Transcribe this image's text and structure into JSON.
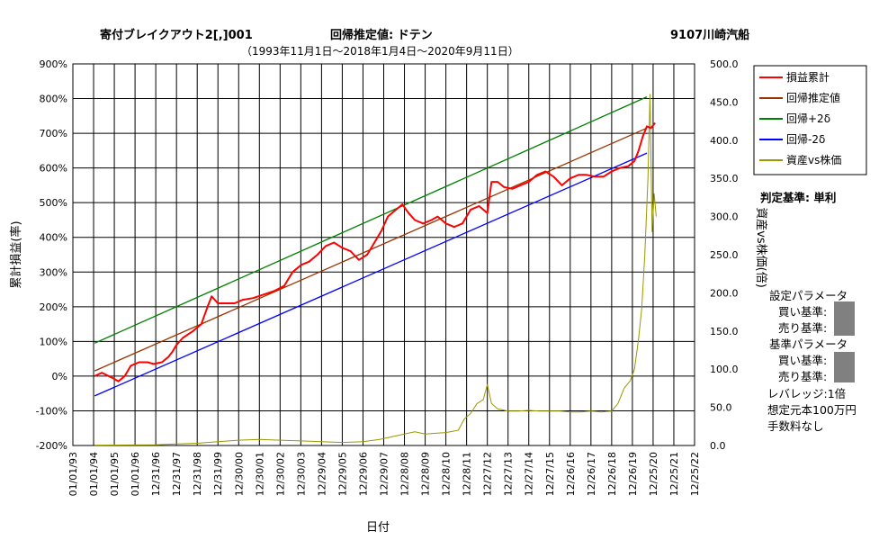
{
  "header": {
    "left_title": "寄付ブレイクアウト2[,]001",
    "center_title": "回帰推定値: ドテン",
    "right_title": "9107川崎汽船",
    "subtitle": "（1993年11月1日～2018年1月4日～2020年9月11日）"
  },
  "side_panel": {
    "judgement": "判定基準: 単利",
    "setting_params": "設定パラメータ",
    "setting_buy": "買い基準:",
    "setting_sell": "売り基準:",
    "base_params": "基準パラメータ",
    "base_buy": "買い基準:",
    "base_sell": "売り基準:",
    "leverage": "レバレッジ:1倍",
    "capital": "想定元本100万円",
    "fee": "手数料なし"
  },
  "colors": {
    "cum": "#ff0000",
    "reg": "#993300",
    "plus2": "#008000",
    "minus2": "#0000ff",
    "asset": "#999900"
  },
  "chart_data": {
    "type": "line",
    "xlabel": "日付",
    "ylabel_left": "累計損益(率)",
    "ylabel_right": "資産vs株価(倍)",
    "left_axis": {
      "min": -200,
      "max": 900,
      "step": 100,
      "unit": "%"
    },
    "right_axis": {
      "min": 0,
      "max": 500,
      "step": 50
    },
    "x_tick_labels": [
      "01/01/93",
      "01/01/94",
      "01/01/95",
      "01/01/96",
      "12/31/96",
      "12/31/97",
      "12/31/98",
      "12/31/99",
      "12/30/00",
      "12/30/01",
      "12/30/02",
      "12/30/03",
      "12/29/04",
      "12/29/05",
      "12/29/06",
      "12/29/07",
      "12/28/08",
      "12/28/09",
      "12/28/10",
      "12/28/11",
      "12/27/12",
      "12/27/13",
      "12/27/14",
      "12/27/15",
      "12/26/16",
      "12/26/17",
      "12/26/18",
      "12/26/19",
      "12/25/20",
      "12/25/21",
      "12/25/22"
    ],
    "grid": true,
    "legend_position": "right",
    "series": [
      {
        "name": "損益累計",
        "axis": "left",
        "color": "#ff0000",
        "points": [
          [
            1.05,
            0
          ],
          [
            1.4,
            10
          ],
          [
            1.9,
            -5
          ],
          [
            2.2,
            -15
          ],
          [
            2.5,
            0
          ],
          [
            2.8,
            30
          ],
          [
            3.2,
            40
          ],
          [
            3.6,
            40
          ],
          [
            3.9,
            35
          ],
          [
            4.3,
            40
          ],
          [
            4.6,
            55
          ],
          [
            4.8,
            70
          ],
          [
            5.0,
            90
          ],
          [
            5.3,
            110
          ],
          [
            5.8,
            130
          ],
          [
            6.2,
            150
          ],
          [
            6.5,
            200
          ],
          [
            6.7,
            230
          ],
          [
            7.0,
            210
          ],
          [
            7.4,
            210
          ],
          [
            7.8,
            210
          ],
          [
            8.2,
            220
          ],
          [
            8.7,
            225
          ],
          [
            9.2,
            235
          ],
          [
            9.7,
            245
          ],
          [
            10.2,
            260
          ],
          [
            10.6,
            300
          ],
          [
            11.0,
            320
          ],
          [
            11.4,
            330
          ],
          [
            11.8,
            350
          ],
          [
            12.2,
            375
          ],
          [
            12.6,
            385
          ],
          [
            13.0,
            370
          ],
          [
            13.4,
            360
          ],
          [
            13.8,
            335
          ],
          [
            14.2,
            350
          ],
          [
            14.6,
            390
          ],
          [
            14.9,
            420
          ],
          [
            15.2,
            460
          ],
          [
            15.6,
            480
          ],
          [
            15.9,
            495
          ],
          [
            16.2,
            470
          ],
          [
            16.5,
            450
          ],
          [
            16.9,
            440
          ],
          [
            17.3,
            450
          ],
          [
            17.6,
            460
          ],
          [
            18.0,
            440
          ],
          [
            18.4,
            430
          ],
          [
            18.8,
            440
          ],
          [
            19.2,
            480
          ],
          [
            19.6,
            490
          ],
          [
            20.0,
            470
          ],
          [
            20.2,
            560
          ],
          [
            20.5,
            560
          ],
          [
            20.8,
            545
          ],
          [
            21.2,
            540
          ],
          [
            21.6,
            550
          ],
          [
            22.0,
            560
          ],
          [
            22.4,
            580
          ],
          [
            22.8,
            590
          ],
          [
            23.2,
            575
          ],
          [
            23.6,
            550
          ],
          [
            24.0,
            570
          ],
          [
            24.4,
            580
          ],
          [
            24.8,
            580
          ],
          [
            25.2,
            575
          ],
          [
            25.6,
            575
          ],
          [
            26.0,
            590
          ],
          [
            26.4,
            600
          ],
          [
            26.8,
            605
          ],
          [
            27.1,
            620
          ],
          [
            27.3,
            650
          ],
          [
            27.5,
            690
          ],
          [
            27.7,
            720
          ],
          [
            27.9,
            715
          ],
          [
            28.1,
            730
          ]
        ]
      },
      {
        "name": "回帰推定値",
        "axis": "left",
        "color": "#993300",
        "points": [
          [
            1.05,
            15
          ],
          [
            27.7,
            715
          ]
        ]
      },
      {
        "name": "回帰+2δ",
        "axis": "left",
        "color": "#008000",
        "points": [
          [
            1.05,
            95
          ],
          [
            27.7,
            805
          ]
        ]
      },
      {
        "name": "回帰-2δ",
        "axis": "left",
        "color": "#0000ff",
        "points": [
          [
            1.05,
            -57
          ],
          [
            27.7,
            643
          ]
        ]
      },
      {
        "name": "資産vs株価",
        "axis": "right",
        "color": "#999900",
        "points": [
          [
            1.05,
            0.5
          ],
          [
            4.0,
            1
          ],
          [
            5.0,
            2
          ],
          [
            6.0,
            3
          ],
          [
            7.0,
            5
          ],
          [
            8.0,
            7
          ],
          [
            9.0,
            8
          ],
          [
            10.0,
            7
          ],
          [
            11.0,
            6
          ],
          [
            12.0,
            5
          ],
          [
            13.0,
            4
          ],
          [
            14.0,
            5
          ],
          [
            14.8,
            8
          ],
          [
            15.5,
            12
          ],
          [
            16.0,
            15
          ],
          [
            16.5,
            18
          ],
          [
            17.0,
            15
          ],
          [
            17.5,
            16
          ],
          [
            18.0,
            17
          ],
          [
            18.6,
            20
          ],
          [
            18.9,
            35
          ],
          [
            19.2,
            42
          ],
          [
            19.5,
            55
          ],
          [
            19.8,
            60
          ],
          [
            20.0,
            80
          ],
          [
            20.2,
            55
          ],
          [
            20.5,
            48
          ],
          [
            21.0,
            45
          ],
          [
            21.5,
            45
          ],
          [
            22.0,
            46
          ],
          [
            22.5,
            45
          ],
          [
            23.0,
            45
          ],
          [
            23.5,
            45
          ],
          [
            24.0,
            44
          ],
          [
            24.5,
            44
          ],
          [
            25.0,
            45
          ],
          [
            25.5,
            44
          ],
          [
            26.0,
            45
          ],
          [
            26.3,
            55
          ],
          [
            26.6,
            75
          ],
          [
            26.9,
            85
          ],
          [
            27.1,
            100
          ],
          [
            27.3,
            140
          ],
          [
            27.45,
            180
          ],
          [
            27.6,
            250
          ],
          [
            27.75,
            350
          ],
          [
            27.85,
            460
          ],
          [
            27.95,
            280
          ],
          [
            28.05,
            330
          ],
          [
            28.15,
            300
          ]
        ]
      }
    ]
  }
}
